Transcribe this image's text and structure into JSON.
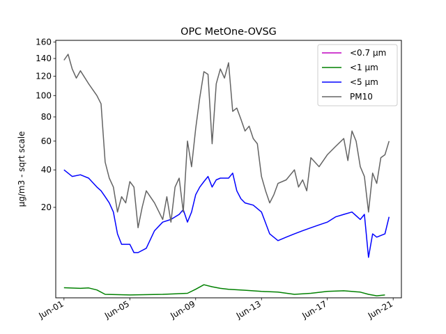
{
  "chart_data": {
    "type": "line",
    "title": "OPC MetOne-OVSG",
    "ylabel": "µg/m3 - sqrt scale",
    "xlabel": "",
    "yscale": "sqrt",
    "ylim": [
      0,
      162
    ],
    "xlim": [
      "2017-05-31T12:00",
      "2017-06-21T12:00"
    ],
    "yticks": [
      20,
      40,
      60,
      80,
      100,
      120,
      140,
      160
    ],
    "xticks": [
      {
        "label": "Jun-01",
        "date": "2017-06-01"
      },
      {
        "label": "Jun-05",
        "date": "2017-06-05"
      },
      {
        "label": "Jun-09",
        "date": "2017-06-09"
      },
      {
        "label": "Jun-13",
        "date": "2017-06-13"
      },
      {
        "label": "Jun-17",
        "date": "2017-06-17"
      },
      {
        "label": "Jun-21",
        "date": "2017-06-21"
      }
    ],
    "legend_position": "upper right",
    "series": [
      {
        "name": "<0.7 µm",
        "color": "#bf00bf",
        "x": [],
        "y": []
      },
      {
        "name": "<1 µm",
        "color": "#008000",
        "x": [
          "2017-06-01",
          "2017-06-02",
          "2017-06-02T12:00",
          "2017-06-03",
          "2017-06-03T12:00",
          "2017-06-05",
          "2017-06-07",
          "2017-06-08T12:00",
          "2017-06-09",
          "2017-06-09T12:00",
          "2017-06-10",
          "2017-06-10T12:00",
          "2017-06-11",
          "2017-06-12",
          "2017-06-13",
          "2017-06-14",
          "2017-06-15",
          "2017-06-16",
          "2017-06-17",
          "2017-06-18",
          "2017-06-19",
          "2017-06-19T12:00",
          "2017-06-20",
          "2017-06-20T12:00"
        ],
        "y": [
          0.25,
          0.22,
          0.24,
          0.15,
          0.03,
          0.02,
          0.03,
          0.05,
          0.18,
          0.42,
          0.3,
          0.22,
          0.18,
          0.14,
          0.1,
          0.08,
          0.03,
          0.05,
          0.1,
          0.12,
          0.08,
          0.03,
          0.01,
          0.02
        ]
      },
      {
        "name": "<5 µm",
        "color": "#0000ff",
        "x": [
          "2017-06-01",
          "2017-06-01T06:00",
          "2017-06-01T12:00",
          "2017-06-02",
          "2017-06-02T12:00",
          "2017-06-03",
          "2017-06-03T06:00",
          "2017-06-03T12:00",
          "2017-06-03T18:00",
          "2017-06-04",
          "2017-06-04T06:00",
          "2017-06-04T12:00",
          "2017-06-05",
          "2017-06-05T06:00",
          "2017-06-05T12:00",
          "2017-06-06",
          "2017-06-06T12:00",
          "2017-06-07",
          "2017-06-07T12:00",
          "2017-06-08",
          "2017-06-08T06:00",
          "2017-06-08T12:00",
          "2017-06-08T18:00",
          "2017-06-09",
          "2017-06-09T06:00",
          "2017-06-09T12:00",
          "2017-06-09T18:00",
          "2017-06-10",
          "2017-06-10T06:00",
          "2017-06-10T12:00",
          "2017-06-11",
          "2017-06-11T06:00",
          "2017-06-11T12:00",
          "2017-06-11T18:00",
          "2017-06-12",
          "2017-06-12T12:00",
          "2017-06-13",
          "2017-06-13T12:00",
          "2017-06-14",
          "2017-06-14T12:00",
          "2017-06-15",
          "2017-06-15T12:00",
          "2017-06-16",
          "2017-06-16T12:00",
          "2017-06-17",
          "2017-06-17T12:00",
          "2017-06-18",
          "2017-06-18T12:00",
          "2017-06-19",
          "2017-06-19T06:00",
          "2017-06-19T12:00",
          "2017-06-19T18:00",
          "2017-06-20",
          "2017-06-20T12:00",
          "2017-06-20T18:00"
        ],
        "y": [
          40,
          38,
          36,
          37,
          35,
          30,
          28,
          25,
          22,
          18,
          10,
          7,
          7,
          5,
          5,
          6,
          11,
          14,
          15,
          17,
          19,
          14,
          18,
          26,
          30,
          33,
          36,
          30,
          34,
          35,
          35,
          38,
          28,
          24,
          22,
          21,
          18,
          10,
          8,
          9,
          10,
          11,
          12,
          13,
          14,
          16,
          17,
          18,
          15,
          17,
          4,
          10,
          9,
          10,
          16
        ]
      },
      {
        "name": "PM10",
        "color": "#636363",
        "x": [
          "2017-06-01",
          "2017-06-01T06:00",
          "2017-06-01T12:00",
          "2017-06-01T18:00",
          "2017-06-02",
          "2017-06-02T12:00",
          "2017-06-03",
          "2017-06-03T06:00",
          "2017-06-03T12:00",
          "2017-06-03T18:00",
          "2017-06-04",
          "2017-06-04T06:00",
          "2017-06-04T12:00",
          "2017-06-04T18:00",
          "2017-06-05",
          "2017-06-05T06:00",
          "2017-06-05T12:00",
          "2017-06-05T18:00",
          "2017-06-06",
          "2017-06-06T12:00",
          "2017-06-07",
          "2017-06-07T06:00",
          "2017-06-07T12:00",
          "2017-06-07T18:00",
          "2017-06-08",
          "2017-06-08T06:00",
          "2017-06-08T12:00",
          "2017-06-08T18:00",
          "2017-06-09",
          "2017-06-09T06:00",
          "2017-06-09T12:00",
          "2017-06-09T18:00",
          "2017-06-10",
          "2017-06-10T06:00",
          "2017-06-10T12:00",
          "2017-06-10T18:00",
          "2017-06-11",
          "2017-06-11T06:00",
          "2017-06-11T12:00",
          "2017-06-11T18:00",
          "2017-06-12",
          "2017-06-12T06:00",
          "2017-06-12T12:00",
          "2017-06-12T18:00",
          "2017-06-13",
          "2017-06-13T06:00",
          "2017-06-13T12:00",
          "2017-06-13T18:00",
          "2017-06-14",
          "2017-06-14T12:00",
          "2017-06-15",
          "2017-06-15T06:00",
          "2017-06-15T12:00",
          "2017-06-15T18:00",
          "2017-06-16",
          "2017-06-16T12:00",
          "2017-06-17",
          "2017-06-17T12:00",
          "2017-06-18",
          "2017-06-18T06:00",
          "2017-06-18T12:00",
          "2017-06-18T18:00",
          "2017-06-19",
          "2017-06-19T06:00",
          "2017-06-19T12:00",
          "2017-06-19T18:00",
          "2017-06-20",
          "2017-06-20T06:00",
          "2017-06-20T12:00",
          "2017-06-20T18:00"
        ],
        "y": [
          138,
          145,
          128,
          118,
          126,
          112,
          100,
          92,
          45,
          35,
          30,
          18,
          25,
          22,
          33,
          30,
          12,
          20,
          28,
          22,
          15,
          25,
          14,
          30,
          35,
          18,
          60,
          42,
          70,
          98,
          125,
          122,
          58,
          112,
          128,
          118,
          135,
          85,
          88,
          78,
          68,
          72,
          62,
          58,
          36,
          28,
          22,
          26,
          32,
          34,
          40,
          30,
          34,
          28,
          48,
          42,
          50,
          56,
          62,
          46,
          68,
          60,
          42,
          36,
          18,
          38,
          32,
          48,
          50,
          60
        ]
      }
    ]
  }
}
